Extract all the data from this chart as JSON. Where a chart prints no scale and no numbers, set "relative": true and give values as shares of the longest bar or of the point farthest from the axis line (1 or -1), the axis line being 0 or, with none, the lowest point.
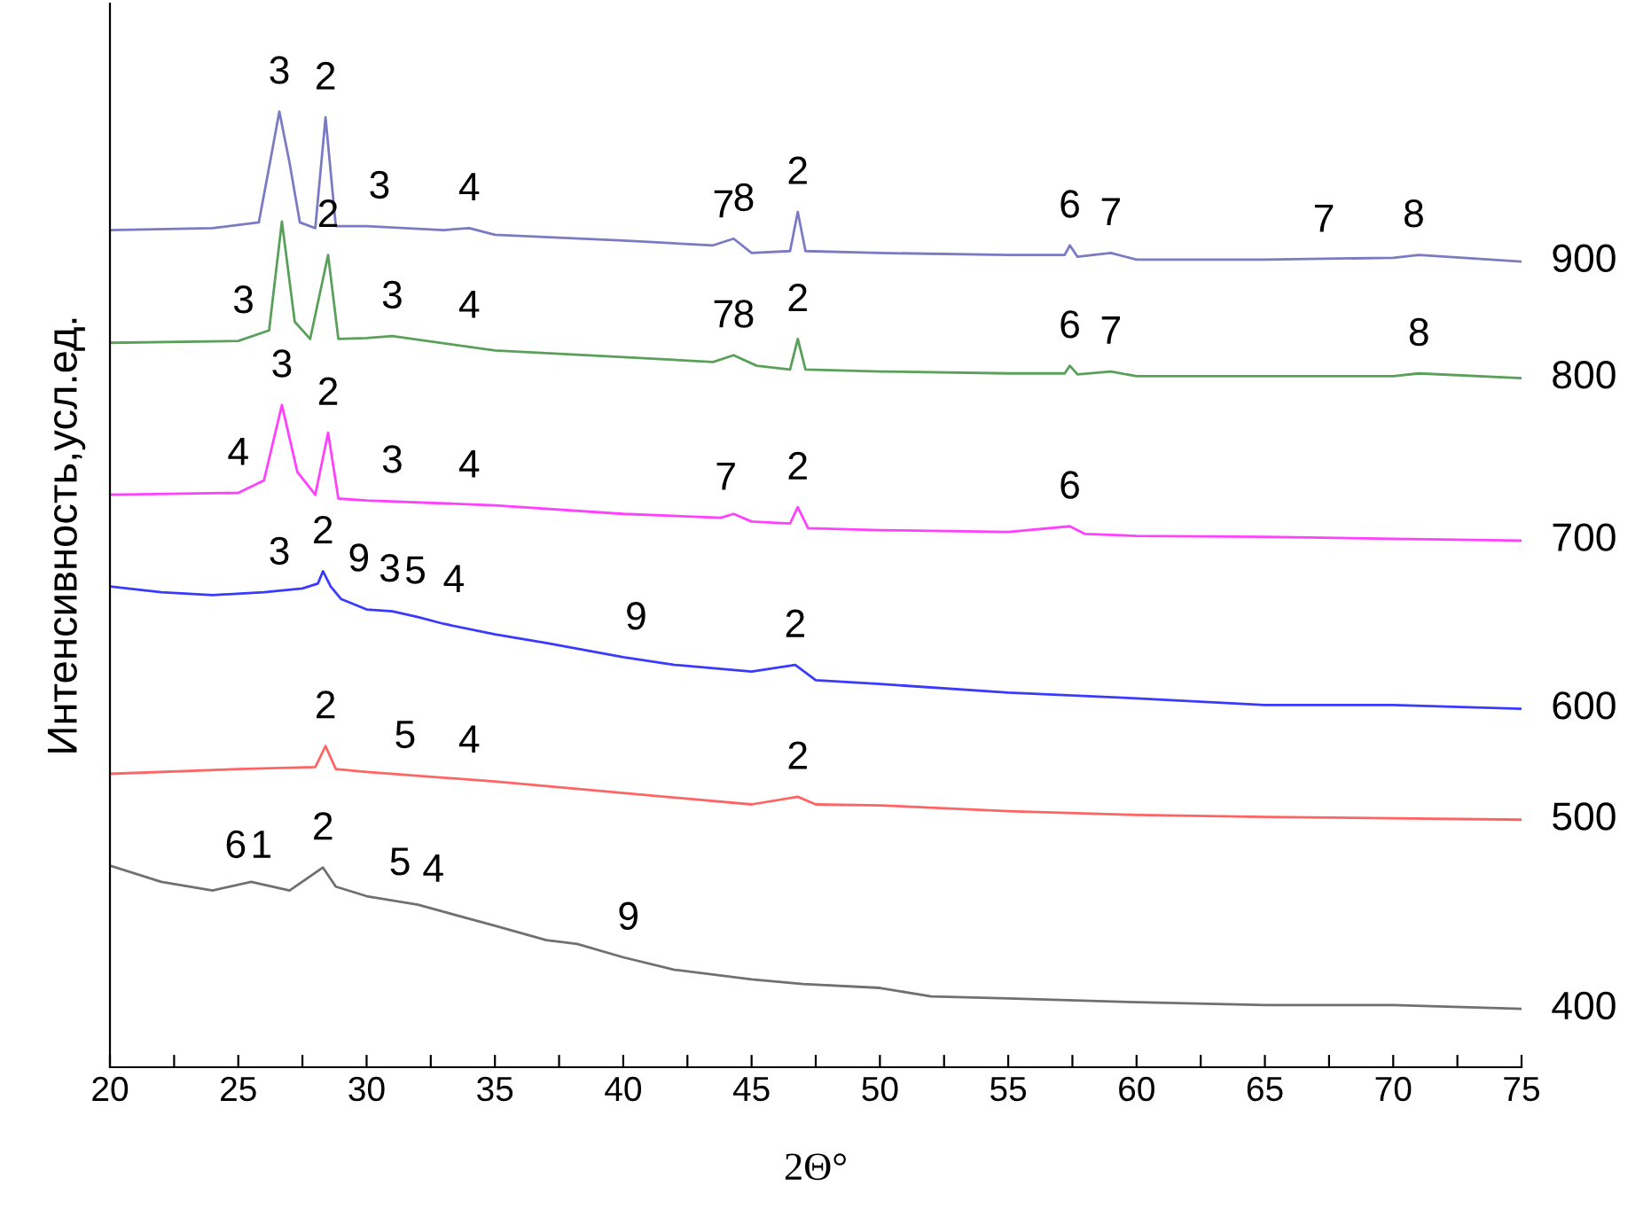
{
  "chart_data": {
    "type": "line",
    "relative": true,
    "xlabel": "2Θ°",
    "ylabel": "Интенсивность,усл.ед.",
    "xlim": [
      20,
      75
    ],
    "xticks": [
      20,
      {
        "value": 22.5,
        "label": null
      },
      25,
      {
        "value": 27.5,
        "label": null
      },
      30,
      {
        "value": 32.5,
        "label": null
      },
      35,
      {
        "value": 37.5,
        "label": null
      },
      40,
      {
        "value": 42.5,
        "label": null
      },
      45,
      {
        "value": 47.5,
        "label": null
      },
      50,
      {
        "value": 52.5,
        "label": null
      },
      55,
      {
        "value": 57.5,
        "label": null
      },
      60,
      {
        "value": 62.5,
        "label": null
      },
      65,
      {
        "value": 67.5,
        "label": null
      },
      70,
      {
        "value": 72.5,
        "label": null
      },
      75
    ],
    "series": [
      {
        "name": "900",
        "color": "#7b7bc4",
        "x": [
          20,
          24,
          25.8,
          26.3,
          26.6,
          27.0,
          27.4,
          28.0,
          28.4,
          28.8,
          30,
          33,
          34,
          35,
          40,
          43.5,
          44.3,
          45,
          46.5,
          46.8,
          47.1,
          50,
          55,
          57.2,
          57.4,
          57.7,
          59,
          60,
          65,
          70,
          71,
          75
        ],
        "values": [
          0.876,
          0.878,
          0.884,
          0.956,
          1.0,
          0.946,
          0.884,
          0.878,
          0.994,
          0.88,
          0.88,
          0.876,
          0.878,
          0.871,
          0.865,
          0.86,
          0.867,
          0.852,
          0.854,
          0.895,
          0.854,
          0.852,
          0.85,
          0.85,
          0.86,
          0.848,
          0.852,
          0.845,
          0.845,
          0.847,
          0.85,
          0.843
        ]
      },
      {
        "name": "800",
        "color": "#5aa05a",
        "x": [
          20,
          25,
          26.2,
          26.7,
          27.2,
          27.8,
          28.5,
          28.9,
          30,
          31,
          35,
          40,
          43.5,
          44.3,
          45.2,
          46.5,
          46.8,
          47.1,
          50,
          55,
          57.2,
          57.4,
          57.7,
          59,
          60,
          65,
          70,
          71,
          75
        ],
        "values": [
          0.758,
          0.76,
          0.771,
          0.885,
          0.78,
          0.762,
          0.85,
          0.762,
          0.763,
          0.765,
          0.75,
          0.743,
          0.738,
          0.745,
          0.734,
          0.73,
          0.762,
          0.73,
          0.728,
          0.726,
          0.726,
          0.734,
          0.725,
          0.728,
          0.723,
          0.723,
          0.723,
          0.726,
          0.721
        ]
      },
      {
        "name": "700",
        "color": "#ff40ff",
        "x": [
          20,
          25,
          26.0,
          26.7,
          27.3,
          28.0,
          28.5,
          28.9,
          30,
          35,
          40,
          43.8,
          44.3,
          45,
          46.5,
          46.8,
          47.2,
          50,
          55,
          57.4,
          58,
          60,
          65,
          70,
          75
        ],
        "values": [
          0.599,
          0.601,
          0.614,
          0.693,
          0.623,
          0.599,
          0.664,
          0.595,
          0.593,
          0.588,
          0.579,
          0.575,
          0.579,
          0.571,
          0.569,
          0.586,
          0.564,
          0.562,
          0.56,
          0.566,
          0.558,
          0.556,
          0.555,
          0.553,
          0.551
        ]
      },
      {
        "name": "600",
        "color": "#3a3aff",
        "x": [
          20,
          22,
          24,
          26,
          27.5,
          28.1,
          28.3,
          28.6,
          29,
          30,
          31,
          32,
          33,
          35,
          37,
          40,
          42,
          45,
          46.7,
          47.5,
          50,
          55,
          60,
          65,
          70,
          75
        ],
        "values": [
          0.503,
          0.497,
          0.494,
          0.497,
          0.501,
          0.506,
          0.519,
          0.503,
          0.49,
          0.479,
          0.477,
          0.471,
          0.464,
          0.453,
          0.444,
          0.429,
          0.421,
          0.414,
          0.421,
          0.405,
          0.401,
          0.392,
          0.386,
          0.379,
          0.379,
          0.375
        ]
      },
      {
        "name": "500",
        "color": "#ff6464",
        "x": [
          20,
          25,
          28,
          28.4,
          28.8,
          30,
          35,
          40,
          45,
          46.8,
          47.5,
          50,
          55,
          60,
          65,
          75
        ],
        "values": [
          0.307,
          0.312,
          0.314,
          0.336,
          0.312,
          0.309,
          0.299,
          0.287,
          0.275,
          0.283,
          0.275,
          0.274,
          0.268,
          0.264,
          0.262,
          0.259
        ]
      },
      {
        "name": "400",
        "color": "#707070",
        "x": [
          20,
          22,
          24,
          25.5,
          27,
          28.3,
          28.8,
          30,
          32,
          35,
          37,
          38.2,
          40,
          42,
          45,
          47,
          50,
          52,
          55,
          60,
          65,
          70,
          75
        ],
        "values": [
          0.211,
          0.194,
          0.185,
          0.194,
          0.185,
          0.209,
          0.189,
          0.179,
          0.17,
          0.148,
          0.133,
          0.129,
          0.115,
          0.102,
          0.092,
          0.087,
          0.083,
          0.074,
          0.072,
          0.068,
          0.065,
          0.065,
          0.061
        ]
      }
    ],
    "annotations": [
      {
        "text": "3",
        "x": 26.6,
        "y": 1.0
      },
      {
        "text": "2",
        "x": 28.4,
        "y": 0.994
      },
      {
        "text": "3",
        "x": 30.5,
        "y": 0.88
      },
      {
        "text": "4",
        "x": 34,
        "y": 0.878
      },
      {
        "text": "7",
        "x": 43.9,
        "y": 0.86
      },
      {
        "text": "8",
        "x": 44.7,
        "y": 0.867
      },
      {
        "text": "2",
        "x": 46.8,
        "y": 0.895
      },
      {
        "text": "6",
        "x": 57.4,
        "y": 0.86
      },
      {
        "text": "7",
        "x": 59.0,
        "y": 0.852
      },
      {
        "text": "7",
        "x": 67.3,
        "y": 0.845
      },
      {
        "text": "8",
        "x": 70.8,
        "y": 0.85
      },
      {
        "text": "3",
        "x": 25.2,
        "y": 0.76
      },
      {
        "text": "2",
        "x": 28.5,
        "y": 0.85
      },
      {
        "text": "3",
        "x": 31,
        "y": 0.765
      },
      {
        "text": "4",
        "x": 34,
        "y": 0.755
      },
      {
        "text": "7",
        "x": 43.9,
        "y": 0.745
      },
      {
        "text": "8",
        "x": 44.7,
        "y": 0.745
      },
      {
        "text": "2",
        "x": 46.8,
        "y": 0.762
      },
      {
        "text": "6",
        "x": 57.4,
        "y": 0.734
      },
      {
        "text": "7",
        "x": 59.0,
        "y": 0.728
      },
      {
        "text": "8",
        "x": 71,
        "y": 0.726
      },
      {
        "text": "4",
        "x": 25.0,
        "y": 0.601
      },
      {
        "text": "3",
        "x": 26.7,
        "y": 0.693
      },
      {
        "text": "2",
        "x": 28.5,
        "y": 0.664
      },
      {
        "text": "3",
        "x": 31,
        "y": 0.593
      },
      {
        "text": "4",
        "x": 34,
        "y": 0.588
      },
      {
        "text": "7",
        "x": 44,
        "y": 0.575
      },
      {
        "text": "2",
        "x": 46.8,
        "y": 0.586
      },
      {
        "text": "6",
        "x": 57.4,
        "y": 0.566
      },
      {
        "text": "3",
        "x": 26.6,
        "y": 0.497
      },
      {
        "text": "2",
        "x": 28.3,
        "y": 0.519
      },
      {
        "text": "9",
        "x": 29.7,
        "y": 0.49
      },
      {
        "text": "3",
        "x": 30.9,
        "y": 0.479
      },
      {
        "text": "5",
        "x": 31.9,
        "y": 0.477
      },
      {
        "text": "4",
        "x": 33.4,
        "y": 0.468
      },
      {
        "text": "9",
        "x": 40.5,
        "y": 0.429
      },
      {
        "text": "2",
        "x": 46.7,
        "y": 0.421
      },
      {
        "text": "2",
        "x": 28.4,
        "y": 0.336
      },
      {
        "text": "5",
        "x": 31.5,
        "y": 0.305
      },
      {
        "text": "4",
        "x": 34,
        "y": 0.3
      },
      {
        "text": "2",
        "x": 46.8,
        "y": 0.283
      },
      {
        "text": "6",
        "x": 24.9,
        "y": 0.19
      },
      {
        "text": "1",
        "x": 25.9,
        "y": 0.19
      },
      {
        "text": "2",
        "x": 28.3,
        "y": 0.209
      },
      {
        "text": "5",
        "x": 31.3,
        "y": 0.172
      },
      {
        "text": "4",
        "x": 32.6,
        "y": 0.165
      },
      {
        "text": "9",
        "x": 40.2,
        "y": 0.115
      }
    ]
  }
}
